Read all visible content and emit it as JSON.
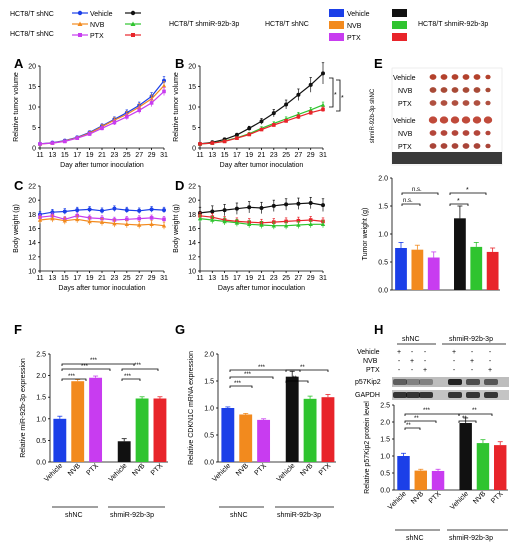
{
  "colors": {
    "black": "#111111",
    "orange": "#f28a1e",
    "magenta": "#c83cf0",
    "green": "#2fc42f",
    "red": "#e8242a",
    "blue": "#1b3fe8"
  },
  "legend_left": {
    "group1": "HCT8/T shNC",
    "group2": "HCT8/T shmiR-92b-3p",
    "items": [
      "Vehicle",
      "NVB",
      "PTX"
    ]
  },
  "legend_right": {
    "group1": "HCT8/T shNC",
    "group2": "HCT8/T shmiR-92b-3p",
    "items": [
      "Vehicle",
      "NVB",
      "PTX"
    ]
  },
  "panels": {
    "A": "A",
    "B": "B",
    "C": "C",
    "D": "D",
    "E": "E",
    "F": "F",
    "G": "G",
    "H": "H"
  },
  "sig": {
    "star": "*",
    "two": "**",
    "three": "***",
    "ns": "n.s."
  },
  "groups": {
    "shNC": "shNC",
    "sh": "shmiR-92b-3p"
  },
  "panel_E": {
    "side_label": "shmiR-92b-3p shNC",
    "row_labels": [
      "Vehicle",
      "NVB",
      "PTX",
      "Vehicle",
      "NVB",
      "PTX"
    ]
  },
  "panel_H": {
    "row_labels": [
      "Vehicle",
      "NVB",
      "PTX"
    ],
    "signs": [
      [
        "+",
        "-",
        "-",
        "+",
        "-",
        "-"
      ],
      [
        "-",
        "+",
        "-",
        "-",
        "+",
        "-"
      ],
      [
        "-",
        "-",
        "+",
        "-",
        "-",
        "+"
      ]
    ],
    "blots": [
      "p57Kip2",
      "GAPDH"
    ]
  },
  "chart_data": [
    {
      "id": "A",
      "type": "line",
      "xlabel": "Day after tumor inoculation",
      "ylabel": "Relative tumor volume",
      "x": [
        11,
        13,
        15,
        17,
        19,
        21,
        23,
        25,
        27,
        29,
        31
      ],
      "xlim": [
        11,
        31
      ],
      "ylim": [
        0,
        20
      ],
      "yticks": [
        0,
        5,
        10,
        15,
        20
      ],
      "series": [
        {
          "color": "blue",
          "values": [
            1,
            1.3,
            1.8,
            2.6,
            3.8,
            5.4,
            7.0,
            8.6,
            10.4,
            12.6,
            16.4
          ],
          "err": [
            0.1,
            0.1,
            0.2,
            0.3,
            0.4,
            0.5,
            0.6,
            0.7,
            0.8,
            0.9,
            1.0
          ]
        },
        {
          "color": "orange",
          "values": [
            1,
            1.2,
            1.7,
            2.5,
            3.6,
            5.2,
            6.8,
            8.2,
            10.0,
            12.0,
            15.2
          ],
          "err": [
            0.1,
            0.1,
            0.2,
            0.3,
            0.4,
            0.5,
            0.6,
            0.7,
            0.8,
            0.9,
            1.0
          ]
        },
        {
          "color": "magenta",
          "values": [
            1,
            1.2,
            1.6,
            2.4,
            3.4,
            4.8,
            6.2,
            7.6,
            9.2,
            11.0,
            13.8
          ],
          "err": [
            0.1,
            0.1,
            0.2,
            0.3,
            0.4,
            0.5,
            0.6,
            0.7,
            0.8,
            0.9,
            1.0
          ]
        }
      ]
    },
    {
      "id": "B",
      "type": "line",
      "xlabel": "Day after tumor inoculation",
      "ylabel": "Relative tumor volume",
      "x": [
        11,
        13,
        15,
        17,
        19,
        21,
        23,
        25,
        27,
        29,
        31
      ],
      "xlim": [
        11,
        31
      ],
      "ylim": [
        0,
        20
      ],
      "yticks": [
        0,
        5,
        10,
        15,
        20
      ],
      "series": [
        {
          "color": "black",
          "values": [
            1,
            1.4,
            2.1,
            3.2,
            4.8,
            6.5,
            8.5,
            10.6,
            13.0,
            15.4,
            18.2
          ],
          "err": [
            0.1,
            0.2,
            0.3,
            0.4,
            0.5,
            0.7,
            0.9,
            1.1,
            1.4,
            1.8,
            2.6
          ]
        },
        {
          "color": "green",
          "values": [
            1,
            1.2,
            1.7,
            2.5,
            3.5,
            4.8,
            6.0,
            7.1,
            8.2,
            9.3,
            10.5
          ],
          "err": [
            0.1,
            0.1,
            0.2,
            0.2,
            0.3,
            0.4,
            0.4,
            0.5,
            0.5,
            0.6,
            0.7
          ]
        },
        {
          "color": "red",
          "values": [
            1,
            1.2,
            1.6,
            2.4,
            3.3,
            4.5,
            5.6,
            6.6,
            7.6,
            8.6,
            9.4
          ],
          "err": [
            0.1,
            0.1,
            0.2,
            0.2,
            0.3,
            0.3,
            0.4,
            0.4,
            0.5,
            0.5,
            0.6
          ]
        }
      ]
    },
    {
      "id": "C",
      "type": "line",
      "xlabel": "Days after tumor inoculation",
      "ylabel": "Body weight (g)",
      "x": [
        11,
        13,
        15,
        17,
        19,
        21,
        23,
        25,
        27,
        29,
        31
      ],
      "xlim": [
        11,
        31
      ],
      "ylim": [
        10,
        22
      ],
      "yticks": [
        10,
        12,
        14,
        16,
        18,
        20,
        22
      ],
      "series": [
        {
          "color": "blue",
          "values": [
            18.0,
            18.3,
            18.4,
            18.6,
            18.7,
            18.5,
            18.8,
            18.6,
            18.5,
            18.7,
            18.6
          ],
          "err": [
            0.4,
            0.4,
            0.4,
            0.4,
            0.4,
            0.4,
            0.4,
            0.4,
            0.4,
            0.4,
            0.4
          ]
        },
        {
          "color": "magenta",
          "values": [
            17.6,
            17.8,
            17.3,
            17.8,
            17.5,
            17.4,
            17.2,
            17.3,
            17.4,
            17.5,
            17.3
          ],
          "err": [
            0.4,
            0.4,
            0.4,
            0.4,
            0.4,
            0.4,
            0.4,
            0.4,
            0.4,
            0.4,
            0.4
          ]
        },
        {
          "color": "orange",
          "values": [
            17.2,
            17.4,
            17.1,
            17.3,
            17.0,
            16.9,
            16.7,
            16.6,
            16.5,
            16.6,
            16.4
          ],
          "err": [
            0.5,
            0.5,
            0.5,
            0.5,
            0.5,
            0.5,
            0.5,
            0.5,
            0.5,
            0.5,
            0.5
          ]
        }
      ]
    },
    {
      "id": "D",
      "type": "line",
      "xlabel": "Days after tumor inoculation",
      "ylabel": "Body weight (g)",
      "x": [
        11,
        13,
        15,
        17,
        19,
        21,
        23,
        25,
        27,
        29,
        31
      ],
      "xlim": [
        11,
        31
      ],
      "ylim": [
        10,
        22
      ],
      "yticks": [
        10,
        12,
        14,
        16,
        18,
        20,
        22
      ],
      "series": [
        {
          "color": "black",
          "values": [
            18.2,
            18.4,
            18.6,
            18.8,
            19.0,
            18.9,
            19.2,
            19.4,
            19.5,
            19.6,
            19.3
          ],
          "err": [
            0.8,
            0.8,
            0.8,
            0.8,
            0.8,
            0.8,
            0.8,
            0.8,
            0.8,
            0.8,
            0.9
          ]
        },
        {
          "color": "red",
          "values": [
            17.8,
            17.6,
            17.2,
            17.0,
            16.9,
            16.8,
            16.9,
            17.0,
            17.1,
            17.2,
            17.0
          ],
          "err": [
            0.5,
            0.5,
            0.5,
            0.5,
            0.5,
            0.5,
            0.5,
            0.5,
            0.5,
            0.5,
            0.5
          ]
        },
        {
          "color": "green",
          "values": [
            17.4,
            17.2,
            17.0,
            16.8,
            16.6,
            16.5,
            16.4,
            16.4,
            16.5,
            16.6,
            16.6
          ],
          "err": [
            0.5,
            0.5,
            0.5,
            0.5,
            0.5,
            0.5,
            0.5,
            0.5,
            0.5,
            0.5,
            0.5
          ]
        }
      ]
    },
    {
      "id": "E",
      "type": "bar",
      "ylabel": "Tumor weight (g)",
      "ylim": [
        0,
        2.0
      ],
      "yticks": [
        0.0,
        0.5,
        1.0,
        1.5,
        2.0
      ],
      "values": [
        0.75,
        0.72,
        0.58,
        1.28,
        0.77,
        0.68
      ],
      "err": [
        0.1,
        0.08,
        0.1,
        0.22,
        0.08,
        0.07
      ],
      "colors": [
        "blue",
        "orange",
        "magenta",
        "black",
        "green",
        "red"
      ]
    },
    {
      "id": "F",
      "type": "bar",
      "ylabel": "Relative miR-92b-3p expression",
      "categories": [
        "Vehicle",
        "NVB",
        "PTX",
        "Vehicle",
        "NVB",
        "PTX"
      ],
      "ylim": [
        0,
        2.5
      ],
      "yticks": [
        0.0,
        0.5,
        1.0,
        1.5,
        2.0,
        2.5
      ],
      "values": [
        1.0,
        1.87,
        1.95,
        0.48,
        1.47,
        1.47
      ],
      "err": [
        0.06,
        0.04,
        0.04,
        0.06,
        0.04,
        0.04
      ],
      "colors": [
        "blue",
        "orange",
        "magenta",
        "black",
        "green",
        "red"
      ]
    },
    {
      "id": "G",
      "type": "bar",
      "ylabel": "Relative CDKN1C mRNA expression",
      "categories": [
        "Vehicle",
        "NVB",
        "PTX",
        "Vehicle",
        "NVB",
        "PTX"
      ],
      "ylim": [
        0,
        2.0
      ],
      "yticks": [
        0.0,
        0.5,
        1.0,
        1.5,
        2.0
      ],
      "values": [
        1.0,
        0.88,
        0.78,
        1.58,
        1.17,
        1.2
      ],
      "err": [
        0.02,
        0.02,
        0.02,
        0.1,
        0.05,
        0.05
      ],
      "colors": [
        "blue",
        "orange",
        "magenta",
        "black",
        "green",
        "red"
      ]
    },
    {
      "id": "H",
      "type": "bar",
      "ylabel": "Relative p57Kip2 protein level",
      "categories": [
        "Vehicle",
        "NVB",
        "PTX",
        "Vehicle",
        "NVB",
        "PTX"
      ],
      "ylim": [
        0,
        2.5
      ],
      "yticks": [
        0.0,
        0.5,
        1.0,
        1.5,
        2.0,
        2.5
      ],
      "values": [
        1.0,
        0.57,
        0.56,
        1.97,
        1.38,
        1.32
      ],
      "err": [
        0.08,
        0.04,
        0.05,
        0.15,
        0.1,
        0.1
      ],
      "colors": [
        "blue",
        "orange",
        "magenta",
        "black",
        "green",
        "red"
      ]
    }
  ]
}
